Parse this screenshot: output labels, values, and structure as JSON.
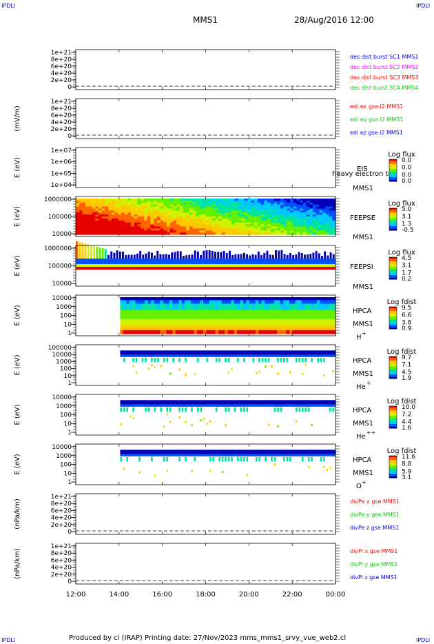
{
  "header": {
    "corner_tl": "IPDLI",
    "corner_tr": "IPDLI",
    "corner_bl": "IPDLI",
    "corner_br": "IPDLI",
    "probe": "MMS1",
    "datetime": "28/Aug/2016 12:00"
  },
  "footer": "Produced by cl (IRAP)   Printing date: 27/Nov/2023   mms_mms1_srvy_vue_web2.cl",
  "time_axis": {
    "start_hour": 12,
    "end_hour": 24,
    "ticks": [
      {
        "hour": 12,
        "label": "12:00"
      },
      {
        "hour": 14,
        "label": "14:00"
      },
      {
        "hour": 16,
        "label": "16:00"
      },
      {
        "hour": 18,
        "label": "18:00"
      },
      {
        "hour": 20,
        "label": "20:00"
      },
      {
        "hour": 22,
        "label": "22:00"
      },
      {
        "hour": 24,
        "label": "00:00"
      }
    ]
  },
  "colors": {
    "spectrogram_scale": [
      "#0000b4",
      "#0050ff",
      "#00c8ff",
      "#00e6a0",
      "#64f000",
      "#d2f000",
      "#ffc800",
      "#ff6400",
      "#e60000"
    ],
    "red": "#ff0000",
    "green": "#00cc00",
    "blue": "#0000ee",
    "magenta": "#ff00ff"
  },
  "chart_data": [
    {
      "type": "line",
      "id": "des",
      "ylabel": "",
      "yticks": [
        "1e+21",
        "8e+20",
        "6e+20",
        "4e+20",
        "2e+20",
        "0"
      ],
      "ylim": [
        0,
        1.1e+21
      ],
      "legend": [
        {
          "text": "des dist burst SC1 MMS1",
          "color": "#0000ee"
        },
        {
          "text": "des dist burst SC2 MMS2",
          "color": "#ff00ff"
        },
        {
          "text": "des dist burst SC3 MMS3",
          "color": "#ff0000"
        },
        {
          "text": "des dist burst SC4 MMS4",
          "color": "#00cc00"
        }
      ],
      "series": []
    },
    {
      "type": "line",
      "id": "edi",
      "ylabel": "(mV/m)",
      "yticks": [
        "1e+21",
        "8e+20",
        "6e+20",
        "4e+20",
        "2e+20",
        "0"
      ],
      "ylim": [
        0,
        1.1e+21
      ],
      "legend": [
        {
          "text": "edi ex gse l2 MMS1",
          "color": "#ff0000"
        },
        {
          "text": "edi ey gse l2 MMS1",
          "color": "#00cc00"
        },
        {
          "text": "edi ez gse l2 MMS1",
          "color": "#0000ee"
        }
      ],
      "series": []
    },
    {
      "type": "heatmap",
      "id": "eis",
      "ylabel": "E (eV)",
      "yscale": "log",
      "yticks": [
        "1e+07",
        "1e+06",
        "1e+05",
        "1e+04"
      ],
      "ylim": [
        10000,
        10000000
      ],
      "labels": [
        "EIS",
        "heavy electron to",
        "MMS1"
      ],
      "colorbar": {
        "title": "Log flux",
        "values": [
          "0.0",
          "0.0",
          "0.0",
          "0.0"
        ]
      },
      "data_extent": null
    },
    {
      "type": "heatmap",
      "id": "feepse",
      "ylabel": "E (eV)",
      "yscale": "log",
      "yticks": [
        "1000000",
        "100000",
        "10000"
      ],
      "ylim": [
        10000,
        1000000
      ],
      "labels": [
        "FEEPSE",
        "MMS1"
      ],
      "colorbar": {
        "title": "Log flux",
        "values": [
          "5.0",
          "3.1",
          "1.3",
          "-0.5"
        ]
      },
      "data_extent": {
        "start_hour": 12,
        "end_hour": 24
      }
    },
    {
      "type": "heatmap",
      "id": "feepsi",
      "ylabel": "E (eV)",
      "yscale": "log",
      "yticks": [
        "1000000",
        "100000",
        "10000"
      ],
      "ylim": [
        10000,
        1000000
      ],
      "labels": [
        "FEEPSI",
        "MMS1"
      ],
      "colorbar": {
        "title": "Log flux",
        "values": [
          "4.5",
          "3.1",
          "1.7",
          "0.2"
        ]
      },
      "data_extent": {
        "start_hour": 12,
        "end_hour": 24
      }
    },
    {
      "type": "heatmap",
      "id": "hpca_h",
      "ylabel": "E (eV)",
      "yscale": "log",
      "yticks": [
        "10000",
        "1000",
        "100",
        "10",
        "1"
      ],
      "ylim": [
        1,
        30000
      ],
      "labels": [
        "HPCA",
        "MMS1"
      ],
      "species": {
        "base": "H",
        "sup": "+"
      },
      "colorbar": {
        "title": "Log fdist",
        "values": [
          "9.5",
          "6.6",
          "3.8",
          "0.9"
        ]
      },
      "data_extent": {
        "start_hour": 14.05,
        "end_hour": 24
      }
    },
    {
      "type": "heatmap",
      "id": "hpca_he",
      "ylabel": "E (eV)",
      "yscale": "log",
      "yticks": [
        "100000",
        "10000",
        "1000",
        "100",
        "10",
        "1"
      ],
      "ylim": [
        1,
        100000
      ],
      "labels": [
        "HPCA",
        "MMS1"
      ],
      "species": {
        "base": "He",
        "sup": "+"
      },
      "colorbar": {
        "title": "Log fdist",
        "values": [
          "9.7",
          "7.1",
          "4.5",
          "1.9"
        ]
      },
      "data_extent": {
        "start_hour": 14.05,
        "end_hour": 24
      }
    },
    {
      "type": "heatmap",
      "id": "hpca_hepp",
      "ylabel": "E (eV)",
      "yscale": "log",
      "yticks": [
        "10000",
        "1000",
        "100",
        "10",
        "1"
      ],
      "ylim": [
        1,
        30000
      ],
      "labels": [
        "HPCA",
        "MMS1"
      ],
      "species": {
        "base": "He",
        "sup": "++"
      },
      "colorbar": {
        "title": "Log fdist",
        "values": [
          "10.0",
          "7.2",
          "4.4",
          "1.6"
        ]
      },
      "data_extent": {
        "start_hour": 14.05,
        "end_hour": 24
      }
    },
    {
      "type": "heatmap",
      "id": "hpca_o",
      "ylabel": "E (eV)",
      "yscale": "log",
      "yticks": [
        "10000",
        "1000",
        "100",
        "10",
        "1"
      ],
      "ylim": [
        1,
        30000
      ],
      "labels": [
        "HPCA",
        "MMS1"
      ],
      "species": {
        "base": "O",
        "sup": "+"
      },
      "colorbar": {
        "title": "Log fdist",
        "values": [
          "11.6",
          "8.8",
          "5.9",
          "3.1"
        ]
      },
      "data_extent": {
        "start_hour": 14.05,
        "end_hour": 24
      }
    },
    {
      "type": "line",
      "id": "divpe",
      "ylabel": "(nPa/km)",
      "yticks": [
        "1e+21",
        "8e+20",
        "6e+20",
        "4e+20",
        "2e+20",
        "0"
      ],
      "ylim": [
        0,
        1.1e+21
      ],
      "legend": [
        {
          "text": "divPe x gse MMS1",
          "color": "#ff0000"
        },
        {
          "text": "divPe y gse MMS1",
          "color": "#00cc00"
        },
        {
          "text": "divPe z gse MMS1",
          "color": "#0000ee"
        }
      ],
      "series": []
    },
    {
      "type": "line",
      "id": "divpi",
      "ylabel": "(nPa/km)",
      "yticks": [
        "1e+21",
        "8e+20",
        "6e+20",
        "4e+20",
        "2e+20",
        "0"
      ],
      "ylim": [
        0,
        1.1e+21
      ],
      "legend": [
        {
          "text": "divPi x gse MMS1",
          "color": "#ff0000"
        },
        {
          "text": "divPi y gse MMS1",
          "color": "#00cc00"
        },
        {
          "text": "divPi z gse MMS1",
          "color": "#0000ee"
        }
      ],
      "series": []
    }
  ]
}
